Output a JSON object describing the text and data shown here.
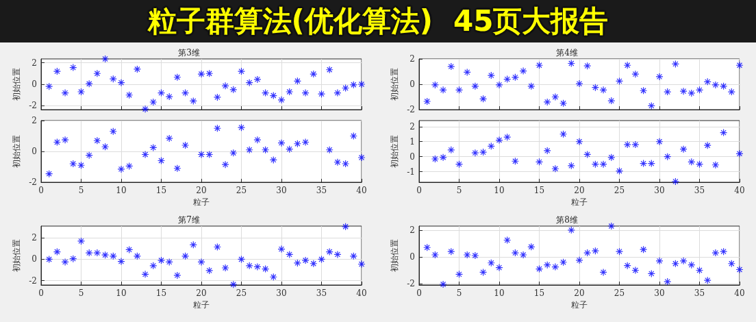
{
  "chart_data": [
    {
      "type": "other",
      "title": "粒子群算法(优化算法)",
      "subtitle": "45页大报告"
    },
    {
      "type": "scatter",
      "title": "第3维",
      "ylabel": "初始位置",
      "color": "#0000ff",
      "marker": "cross",
      "grid": true,
      "tick_labels": "y",
      "xlim": [
        0,
        40
      ],
      "xticks": [
        0,
        5,
        10,
        15,
        20,
        25,
        30,
        35,
        40
      ],
      "ylim": [
        -2.35,
        2.35
      ],
      "yticks": [
        -2,
        0,
        2
      ],
      "x": [
        1,
        2,
        3,
        4,
        5,
        6,
        7,
        8,
        9,
        10,
        11,
        12,
        13,
        14,
        15,
        16,
        17,
        18,
        19,
        20,
        21,
        22,
        23,
        24,
        25,
        26,
        27,
        28,
        29,
        30,
        31,
        32,
        33,
        34,
        35,
        36,
        37,
        38,
        39,
        40
      ],
      "values": [
        -0.2,
        1.2,
        -0.8,
        1.55,
        -0.7,
        0.05,
        1.0,
        2.35,
        0.5,
        0.15,
        -1.0,
        1.4,
        -2.3,
        -1.65,
        -0.8,
        -1.15,
        0.65,
        -0.8,
        -1.55,
        0.95,
        1.0,
        -1.2,
        -0.15,
        -0.5,
        1.2,
        0.15,
        0.45,
        -0.8,
        -1.05,
        -1.45,
        -0.7,
        0.3,
        -0.8,
        0.95,
        -0.9,
        1.35,
        -0.8,
        -0.35,
        -0.05,
        0.0
      ]
    },
    {
      "type": "scatter",
      "title": "第4维",
      "ylabel": "初始位置",
      "color": "#0000ff",
      "marker": "cross",
      "grid": true,
      "tick_labels": "y",
      "xlim": [
        0,
        40
      ],
      "xticks": [
        0,
        5,
        10,
        15,
        20,
        25,
        30,
        35,
        40
      ],
      "ylim": [
        -2,
        2
      ],
      "yticks": [
        -2,
        0,
        2
      ],
      "x": [
        1,
        2,
        3,
        4,
        5,
        6,
        7,
        8,
        9,
        10,
        11,
        12,
        13,
        14,
        15,
        16,
        17,
        18,
        19,
        20,
        21,
        22,
        23,
        24,
        25,
        26,
        27,
        28,
        29,
        30,
        31,
        32,
        33,
        34,
        35,
        36,
        37,
        38,
        39,
        40
      ],
      "values": [
        -1.35,
        -0.05,
        -0.45,
        1.4,
        -0.45,
        0.95,
        -0.15,
        -1.15,
        0.7,
        -0.05,
        0.4,
        0.55,
        1.05,
        -0.15,
        1.5,
        -1.4,
        -1.0,
        -1.5,
        1.65,
        0.05,
        1.45,
        -0.25,
        -0.45,
        -1.3,
        0.25,
        1.5,
        0.8,
        -0.5,
        -1.7,
        0.6,
        -0.6,
        1.6,
        -0.55,
        -0.7,
        -0.45,
        0.2,
        -0.05,
        -0.15,
        -0.6,
        1.5
      ]
    },
    {
      "type": "scatter",
      "xlabel": "粒子",
      "ylabel": "初始位置",
      "color": "#0000ff",
      "marker": "cross",
      "grid": true,
      "xlim": [
        0,
        40
      ],
      "xticks": [
        0,
        5,
        10,
        15,
        20,
        25,
        30,
        35,
        40
      ],
      "ylim": [
        -2,
        2
      ],
      "yticks": [
        -2,
        0,
        2
      ],
      "x": [
        1,
        2,
        3,
        4,
        5,
        6,
        7,
        8,
        9,
        10,
        11,
        12,
        13,
        14,
        15,
        16,
        17,
        18,
        19,
        20,
        21,
        22,
        23,
        24,
        25,
        26,
        27,
        28,
        29,
        30,
        31,
        32,
        33,
        34,
        35,
        36,
        37,
        38,
        39,
        40
      ],
      "values": [
        -1.45,
        0.6,
        0.75,
        -0.8,
        -0.9,
        -0.25,
        0.7,
        0.3,
        1.3,
        -1.15,
        -0.95,
        null,
        -0.2,
        0.25,
        -0.6,
        0.85,
        -1.1,
        0.4,
        null,
        -0.2,
        -0.2,
        1.5,
        -0.85,
        -0.1,
        1.55,
        0.1,
        0.75,
        0.1,
        -0.55,
        0.55,
        0.15,
        0.5,
        0.6,
        null,
        null,
        0.1,
        -0.7,
        -0.8,
        1.0,
        -0.4
      ]
    },
    {
      "type": "scatter",
      "xlabel": "粒子",
      "ylabel": "初始位置",
      "color": "#0000ff",
      "marker": "cross",
      "grid": true,
      "xlim": [
        0,
        40
      ],
      "xticks": [
        0,
        5,
        10,
        15,
        20,
        25,
        30,
        35,
        40
      ],
      "ylim": [
        -1.7,
        2.4
      ],
      "yticks": [
        -1,
        0,
        1,
        2
      ],
      "x": [
        2,
        3,
        4,
        5,
        6,
        7,
        8,
        9,
        10,
        11,
        12,
        13,
        14,
        15,
        16,
        17,
        18,
        19,
        20,
        21,
        22,
        23,
        24,
        25,
        26,
        27,
        28,
        29,
        30,
        31,
        32,
        33,
        34,
        35,
        36,
        37,
        38,
        39,
        40
      ],
      "values": [
        -0.15,
        -0.05,
        0.45,
        -0.5,
        null,
        0.25,
        0.3,
        0.7,
        1.1,
        1.3,
        -0.3,
        null,
        null,
        -0.35,
        0.4,
        -0.8,
        1.5,
        -0.6,
        1.0,
        0.15,
        -0.5,
        -0.5,
        -0.05,
        -0.95,
        0.8,
        0.8,
        -0.45,
        -0.45,
        1.0,
        0.0,
        -1.65,
        0.5,
        -0.35,
        -0.5,
        0.75,
        -0.55,
        1.6,
        null,
        0.2
      ]
    },
    {
      "type": "scatter",
      "title": "第7维",
      "xlabel": "粒子",
      "ylabel": "初始位置",
      "color": "#0000ff",
      "marker": "cross",
      "grid": true,
      "xlim": [
        0,
        40
      ],
      "xticks": [
        0,
        5,
        10,
        15,
        20,
        25,
        30,
        35,
        40
      ],
      "ylim": [
        -2.4,
        3.1
      ],
      "yticks": [
        -2,
        0,
        2
      ],
      "x": [
        1,
        2,
        3,
        4,
        5,
        6,
        7,
        8,
        9,
        10,
        11,
        12,
        13,
        14,
        15,
        16,
        17,
        18,
        19,
        20,
        21,
        22,
        23,
        24,
        25,
        26,
        27,
        28,
        29,
        30,
        31,
        32,
        33,
        34,
        35,
        36,
        37,
        38,
        39,
        40
      ],
      "values": [
        0.0,
        0.7,
        -0.25,
        0.05,
        1.7,
        0.6,
        0.6,
        0.4,
        0.3,
        -0.2,
        0.9,
        0.3,
        -1.4,
        -0.6,
        -0.1,
        -0.25,
        -1.5,
        0.3,
        1.35,
        -0.25,
        -1.05,
        1.15,
        -0.8,
        -2.35,
        0.0,
        -0.6,
        -0.7,
        -0.9,
        -1.65,
        0.95,
        0.45,
        -0.35,
        -0.1,
        -0.4,
        0.0,
        0.7,
        0.45,
        3.05,
        0.3,
        -0.45
      ]
    },
    {
      "type": "scatter",
      "title": "第8维",
      "xlabel": "粒子",
      "ylabel": "初始位置",
      "color": "#0000ff",
      "marker": "cross",
      "grid": true,
      "xlim": [
        0,
        40
      ],
      "xticks": [
        0,
        5,
        10,
        15,
        20,
        25,
        30,
        35,
        40
      ],
      "ylim": [
        -2.1,
        2.3
      ],
      "yticks": [
        -2,
        0,
        2
      ],
      "x": [
        1,
        2,
        3,
        4,
        5,
        6,
        7,
        8,
        9,
        10,
        11,
        12,
        13,
        14,
        15,
        16,
        17,
        18,
        19,
        20,
        21,
        22,
        23,
        24,
        25,
        26,
        27,
        28,
        29,
        30,
        31,
        32,
        33,
        34,
        35,
        36,
        37,
        38,
        39,
        40
      ],
      "values": [
        0.7,
        0.15,
        -2.05,
        0.4,
        -1.3,
        0.15,
        0.1,
        -1.15,
        -0.45,
        -0.8,
        1.25,
        0.3,
        0.15,
        0.75,
        -0.9,
        -0.6,
        -0.75,
        -0.4,
        2.0,
        -0.25,
        0.3,
        0.45,
        -1.15,
        2.3,
        0.4,
        -0.65,
        -1.0,
        0.55,
        -1.25,
        -0.3,
        -1.85,
        -0.5,
        -0.3,
        -0.6,
        -1.0,
        -1.75,
        0.3,
        0.4,
        -0.5,
        -0.95
      ]
    }
  ]
}
